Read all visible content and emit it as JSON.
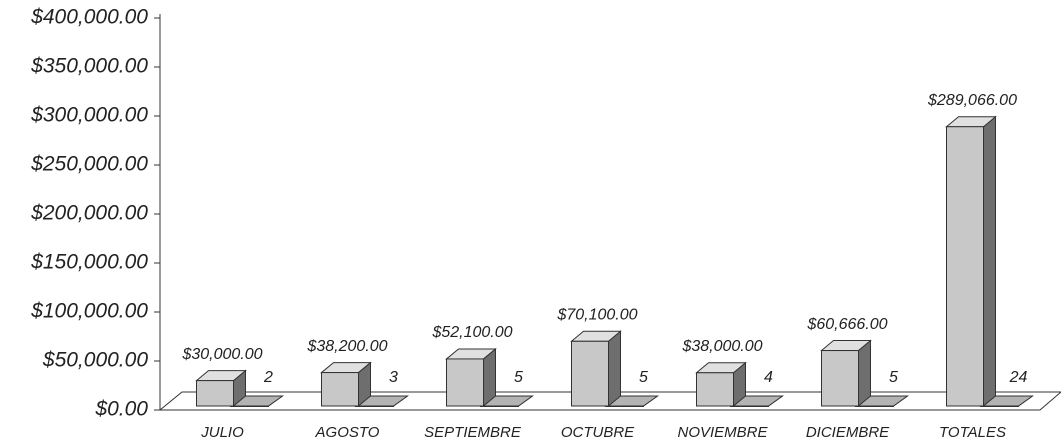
{
  "chart_data": {
    "type": "bar3d",
    "categories": [
      "JULIO",
      "AGOSTO",
      "SEPTIEMBRE",
      "OCTUBRE",
      "NOVIEMBRE",
      "DICIEMBRE",
      "TOTALES"
    ],
    "series": [
      {
        "color": "#c8c8c8",
        "values": [
          30000,
          38200,
          52100,
          70100,
          38000,
          60666,
          289066
        ],
        "value_labels": [
          "$30,000.00",
          "$38,200.00",
          "$52,100.00",
          "$70,100.00",
          "$38,000.00",
          "$60,666.00",
          "$289,066.00"
        ]
      },
      {
        "color": "#a0a0a0",
        "values": [
          2,
          3,
          5,
          5,
          4,
          5,
          24
        ]
      }
    ],
    "ylim": [
      0,
      400000
    ],
    "yticks": [
      {
        "value": 0,
        "label": "$0.00"
      },
      {
        "value": 50000,
        "label": "$50,000.00"
      },
      {
        "value": 100000,
        "label": "$100,000.00"
      },
      {
        "value": 150000,
        "label": "$150,000.00"
      },
      {
        "value": 200000,
        "label": "$200,000.00"
      },
      {
        "value": 250000,
        "label": "$250,000.00"
      },
      {
        "value": 300000,
        "label": "$300,000.00"
      },
      {
        "value": 350000,
        "label": "$350,000.00"
      },
      {
        "value": 400000,
        "label": "$400,000.00"
      }
    ]
  }
}
